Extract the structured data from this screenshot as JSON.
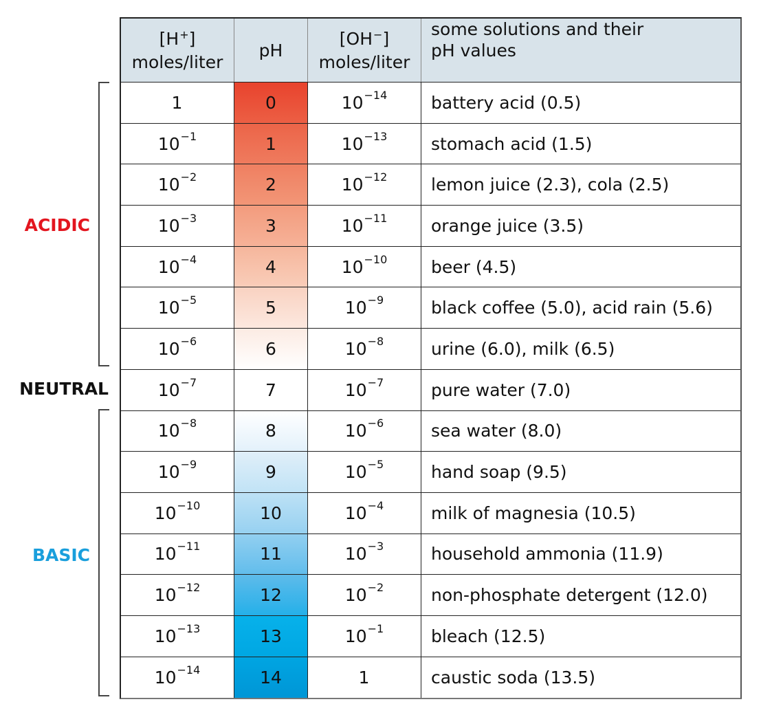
{
  "header": {
    "col1_line1": "[H",
    "col1_sup": "+",
    "col1_line1_end": "]",
    "col1_line2": "moles/liter",
    "col2": "pH",
    "col3_line1": "[OH",
    "col3_sup": "−",
    "col3_line1_end": "]",
    "col3_line2": "moles/liter",
    "col4_line1": "some solutions and their",
    "col4_line2": "pH values"
  },
  "groups": {
    "acidic": {
      "label": "ACIDIC",
      "color": "#e3161f"
    },
    "neutral": {
      "label": "NEUTRAL",
      "color": "#111111"
    },
    "basic": {
      "label": "BASIC",
      "color": "#1a9fdc"
    }
  },
  "rows": [
    {
      "h_base": "1",
      "h_exp": "",
      "ph": "0",
      "oh_base": "10",
      "oh_exp": "−14",
      "example": "battery acid (0.5)",
      "color_top": "#e8432d",
      "color_bottom": "#ec5f44"
    },
    {
      "h_base": "10",
      "h_exp": "−1",
      "ph": "1",
      "oh_base": "10",
      "oh_exp": "−13",
      "example": "stomach acid (1.5)",
      "color_top": "#ec6448",
      "color_bottom": "#ef7b5e"
    },
    {
      "h_base": "10",
      "h_exp": "−2",
      "ph": "2",
      "oh_base": "10",
      "oh_exp": "−12",
      "example": "lemon juice (2.3), cola (2.5)",
      "color_top": "#ef7f61",
      "color_bottom": "#f29677"
    },
    {
      "h_base": "10",
      "h_exp": "−3",
      "ph": "3",
      "oh_base": "10",
      "oh_exp": "−11",
      "example": "orange juice (3.5)",
      "color_top": "#f39b7d",
      "color_bottom": "#f6b298"
    },
    {
      "h_base": "10",
      "h_exp": "−4",
      "ph": "4",
      "oh_base": "10",
      "oh_exp": "−10",
      "example": "beer (4.5)",
      "color_top": "#f6b69c",
      "color_bottom": "#f9cdb9"
    },
    {
      "h_base": "10",
      "h_exp": "−5",
      "ph": "5",
      "oh_base": "10",
      "oh_exp": "−9",
      "example": "black coffee (5.0), acid rain (5.6)",
      "color_top": "#f9d2c1",
      "color_bottom": "#fce8df"
    },
    {
      "h_base": "10",
      "h_exp": "−6",
      "ph": "6",
      "oh_base": "10",
      "oh_exp": "−8",
      "example": "urine (6.0), milk (6.5)",
      "color_top": "#fcebe3",
      "color_bottom": "#ffffff"
    },
    {
      "h_base": "10",
      "h_exp": "−7",
      "ph": "7",
      "oh_base": "10",
      "oh_exp": "−7",
      "example": "pure water (7.0)",
      "color_top": "#ffffff",
      "color_bottom": "#ffffff"
    },
    {
      "h_base": "10",
      "h_exp": "−8",
      "ph": "8",
      "oh_base": "10",
      "oh_exp": "−6",
      "example": "sea water (8.0)",
      "color_top": "#ffffff",
      "color_bottom": "#e3f1fb"
    },
    {
      "h_base": "10",
      "h_exp": "−9",
      "ph": "9",
      "oh_base": "10",
      "oh_exp": "−5",
      "example": "hand soap (9.5)",
      "color_top": "#e0eff9",
      "color_bottom": "#c1e3f6"
    },
    {
      "h_base": "10",
      "h_exp": "−10",
      "ph": "10",
      "oh_base": "10",
      "oh_exp": "−4",
      "example": "milk of magnesia (10.5)",
      "color_top": "#bde1f5",
      "color_bottom": "#97d1f1"
    },
    {
      "h_base": "10",
      "h_exp": "−11",
      "ph": "11",
      "oh_base": "10",
      "oh_exp": "−3",
      "example": "household ammonia (11.9)",
      "color_top": "#92cff0",
      "color_bottom": "#62bdec"
    },
    {
      "h_base": "10",
      "h_exp": "−12",
      "ph": "12",
      "oh_base": "10",
      "oh_exp": "−2",
      "example": "non-phosphate detergent (12.0)",
      "color_top": "#5ebbea",
      "color_bottom": "#25b0e9"
    },
    {
      "h_base": "10",
      "h_exp": "−13",
      "ph": "13",
      "oh_base": "10",
      "oh_exp": "−1",
      "example": "bleach (12.5)",
      "color_top": "#07b1ea",
      "color_bottom": "#00a7e3"
    },
    {
      "h_base": "10",
      "h_exp": "−14",
      "ph": "14",
      "oh_base": "1",
      "oh_exp": "",
      "example": "caustic soda (13.5)",
      "color_top": "#00a5e2",
      "color_bottom": "#0096d6"
    }
  ]
}
